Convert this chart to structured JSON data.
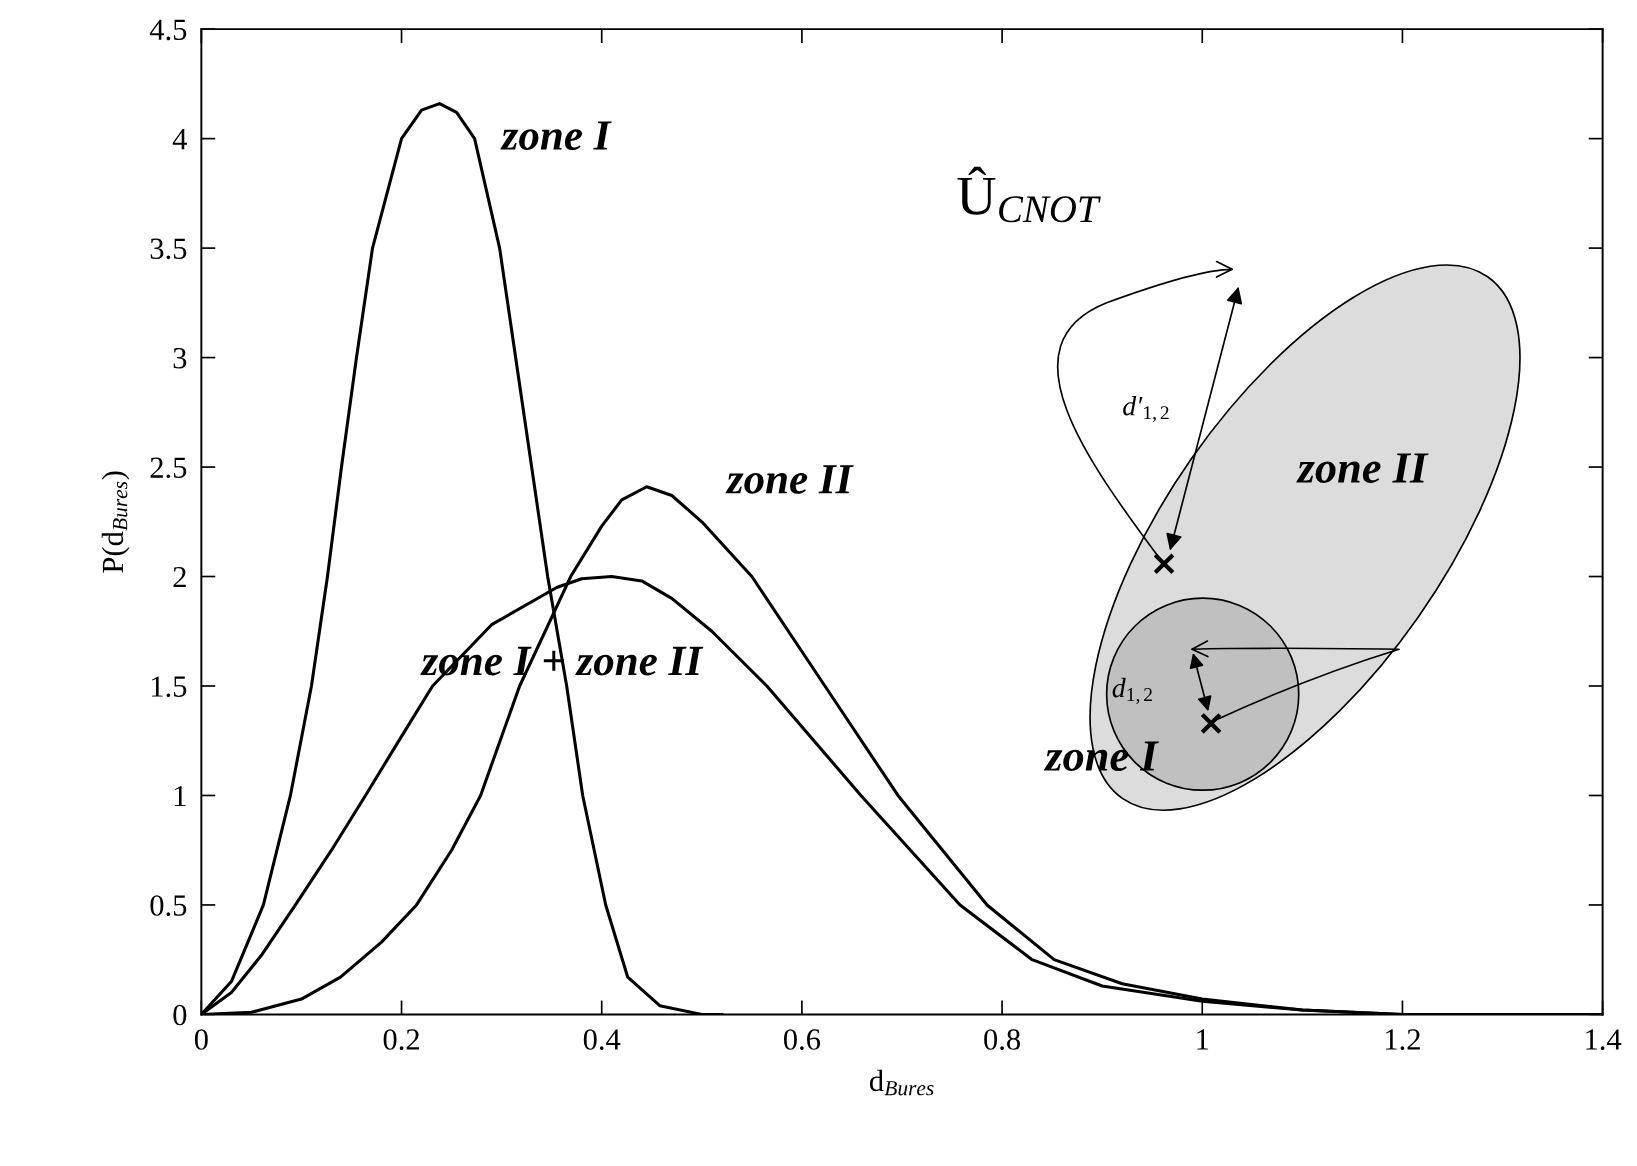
{
  "chart_data": {
    "type": "line",
    "xlabel": "d$_{Bures}$",
    "ylabel": "P(d$_{Bures}$)",
    "xlim": [
      0,
      1.4
    ],
    "xticks": [
      0,
      0.2,
      0.4,
      0.6,
      0.8,
      1,
      1.2,
      1.4
    ],
    "ylim": [
      0,
      4.5
    ],
    "yticks": [
      0,
      0.5,
      1,
      1.5,
      2,
      2.5,
      3,
      3.5,
      4,
      4.5
    ],
    "grid": false,
    "legend": false,
    "marker": "none",
    "line_style": "solid",
    "series": [
      {
        "color": "#000000",
        "x": [
          0,
          0.03,
          0.062,
          0.089,
          0.11,
          0.126,
          0.14,
          0.155,
          0.171,
          0.2,
          0.22,
          0.238,
          0.255,
          0.273,
          0.298,
          0.314,
          0.33,
          0.346,
          0.365,
          0.381,
          0.404,
          0.426,
          0.458,
          0.5,
          0.52
        ],
        "values": [
          0,
          0.15,
          0.5,
          1.0,
          1.5,
          2.0,
          2.5,
          3.0,
          3.5,
          4.0,
          4.13,
          4.16,
          4.12,
          4.0,
          3.5,
          3.0,
          2.5,
          2.0,
          1.5,
          1.0,
          0.5,
          0.17,
          0.04,
          0,
          0
        ]
      },
      {
        "color": "#000000",
        "x": [
          0,
          0.05,
          0.1,
          0.139,
          0.18,
          0.215,
          0.25,
          0.279,
          0.318,
          0.369,
          0.4,
          0.42,
          0.445,
          0.47,
          0.5,
          0.55,
          0.623,
          0.696,
          0.785,
          0.852,
          0.92,
          1.0,
          1.1,
          1.2,
          1.4
        ],
        "values": [
          0,
          0.01,
          0.07,
          0.17,
          0.33,
          0.5,
          0.75,
          1.0,
          1.5,
          2.0,
          2.23,
          2.35,
          2.41,
          2.37,
          2.25,
          2.0,
          1.5,
          1.0,
          0.5,
          0.25,
          0.14,
          0.07,
          0.02,
          0,
          0
        ]
      },
      {
        "color": "#000000",
        "x": [
          0,
          0.03,
          0.06,
          0.094,
          0.13,
          0.164,
          0.2,
          0.231,
          0.29,
          0.355,
          0.38,
          0.41,
          0.44,
          0.47,
          0.51,
          0.565,
          0.659,
          0.758,
          0.83,
          0.9,
          1.0,
          1.1,
          1.2,
          1.4
        ],
        "values": [
          0,
          0.1,
          0.27,
          0.5,
          0.75,
          1.0,
          1.27,
          1.5,
          1.78,
          1.95,
          1.99,
          2.0,
          1.98,
          1.9,
          1.75,
          1.5,
          1.0,
          0.5,
          0.25,
          0.13,
          0.06,
          0.02,
          0,
          0
        ]
      }
    ],
    "annotations": [
      "zone I",
      "zone II",
      "zone I + zone II",
      "Û$_{CNOT}$",
      "d′$_{1,2}$",
      "zone II",
      "d$_{1,2}$",
      "zone I"
    ]
  }
}
